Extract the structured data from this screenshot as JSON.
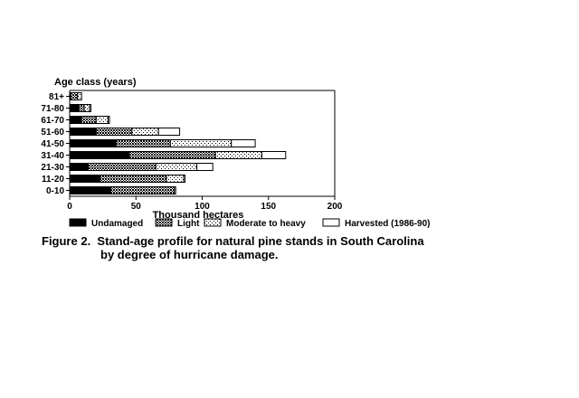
{
  "chart_data": {
    "type": "bar",
    "orientation": "horizontal",
    "stacked": true,
    "ylabel": "Age class (years)",
    "xlabel": "Thousand hectares",
    "xlim": [
      0,
      200
    ],
    "xticks": [
      "0",
      "50",
      "100",
      "150",
      "200"
    ],
    "grid": false,
    "legend_position": "bottom",
    "categories": [
      "81+",
      "71-80",
      "61-70",
      "51-60",
      "41-50",
      "31-40",
      "21-30",
      "11-20",
      "0-10"
    ],
    "series": [
      {
        "name": "Undamaged",
        "pattern": "solid",
        "values": [
          1,
          7,
          9,
          20,
          35,
          45,
          14,
          23,
          31
        ]
      },
      {
        "name": "Light",
        "pattern": "crosshatch",
        "values": [
          5,
          4,
          11,
          27,
          41,
          65,
          51,
          50,
          48
        ]
      },
      {
        "name": "Moderate to heavy",
        "pattern": "dots",
        "values": [
          3,
          4,
          9,
          20,
          46,
          35,
          31,
          13,
          1
        ]
      },
      {
        "name": "Harvested (1986-90)",
        "pattern": "white",
        "values": [
          0,
          1,
          1,
          16,
          18,
          18,
          12,
          1,
          0
        ]
      }
    ]
  },
  "caption": {
    "line1": "Figure 2.  Stand-age profile for natural pine stands in South Carolina",
    "line2": "by degree of hurricane damage."
  },
  "colors": {
    "ink": "#000000",
    "background": "#ffffff"
  }
}
